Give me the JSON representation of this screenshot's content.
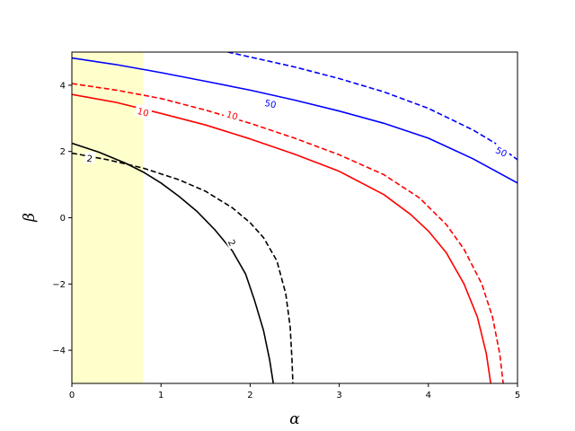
{
  "chart_data": {
    "type": "line",
    "title": "",
    "xlabel": "α",
    "ylabel": "β",
    "xlim": [
      0,
      5
    ],
    "ylim": [
      -5,
      5
    ],
    "xticks": [
      0,
      1,
      2,
      3,
      4,
      5
    ],
    "yticks": [
      -4,
      -2,
      0,
      2,
      4
    ],
    "grid": false,
    "legend": "none",
    "shaded_region": {
      "x": [
        0,
        0.8
      ],
      "color": "#ffffcc"
    },
    "series": [
      {
        "color": "#000000",
        "style": "solid",
        "points": [
          [
            0,
            2.25
          ],
          [
            0.3,
            1.98
          ],
          [
            0.6,
            1.65
          ],
          [
            0.8,
            1.38
          ],
          [
            1.0,
            1.05
          ],
          [
            1.2,
            0.65
          ],
          [
            1.4,
            0.2
          ],
          [
            1.6,
            -0.35
          ],
          [
            1.8,
            -1.0
          ],
          [
            1.95,
            -1.7
          ],
          [
            2.05,
            -2.5
          ],
          [
            2.15,
            -3.4
          ],
          [
            2.22,
            -4.3
          ],
          [
            2.26,
            -5.0
          ]
        ]
      },
      {
        "color": "#000000",
        "style": "dashed",
        "points": [
          [
            0,
            1.95
          ],
          [
            0.4,
            1.75
          ],
          [
            0.8,
            1.5
          ],
          [
            1.2,
            1.15
          ],
          [
            1.5,
            0.8
          ],
          [
            1.8,
            0.3
          ],
          [
            2.0,
            -0.15
          ],
          [
            2.15,
            -0.6
          ],
          [
            2.3,
            -1.3
          ],
          [
            2.4,
            -2.3
          ],
          [
            2.45,
            -3.3
          ],
          [
            2.47,
            -4.3
          ],
          [
            2.48,
            -5.0
          ]
        ]
      },
      {
        "color": "#ff0000",
        "style": "solid",
        "points": [
          [
            0,
            3.72
          ],
          [
            0.5,
            3.48
          ],
          [
            1.0,
            3.15
          ],
          [
            1.5,
            2.8
          ],
          [
            2.0,
            2.38
          ],
          [
            2.5,
            1.92
          ],
          [
            3.0,
            1.4
          ],
          [
            3.5,
            0.7
          ],
          [
            3.8,
            0.1
          ],
          [
            4.0,
            -0.4
          ],
          [
            4.2,
            -1.05
          ],
          [
            4.4,
            -2.0
          ],
          [
            4.55,
            -3.0
          ],
          [
            4.65,
            -4.1
          ],
          [
            4.7,
            -5.0
          ]
        ]
      },
      {
        "color": "#ff0000",
        "style": "dashed",
        "points": [
          [
            0,
            4.05
          ],
          [
            0.5,
            3.85
          ],
          [
            1.0,
            3.6
          ],
          [
            1.5,
            3.25
          ],
          [
            2.0,
            2.85
          ],
          [
            2.5,
            2.4
          ],
          [
            3.0,
            1.9
          ],
          [
            3.5,
            1.3
          ],
          [
            3.9,
            0.6
          ],
          [
            4.2,
            -0.2
          ],
          [
            4.4,
            -0.95
          ],
          [
            4.6,
            -2.0
          ],
          [
            4.72,
            -3.0
          ],
          [
            4.8,
            -4.1
          ],
          [
            4.84,
            -5.0
          ]
        ]
      },
      {
        "color": "#0000ff",
        "style": "solid",
        "points": [
          [
            0,
            4.82
          ],
          [
            0.5,
            4.62
          ],
          [
            1.0,
            4.38
          ],
          [
            1.5,
            4.12
          ],
          [
            2.0,
            3.85
          ],
          [
            2.5,
            3.55
          ],
          [
            3.0,
            3.22
          ],
          [
            3.5,
            2.85
          ],
          [
            4.0,
            2.4
          ],
          [
            4.5,
            1.78
          ],
          [
            5.0,
            1.05
          ]
        ]
      },
      {
        "color": "#0000ff",
        "style": "dashed",
        "points": [
          [
            1.75,
            5.0
          ],
          [
            2.0,
            4.85
          ],
          [
            2.5,
            4.55
          ],
          [
            3.0,
            4.2
          ],
          [
            3.5,
            3.8
          ],
          [
            4.0,
            3.3
          ],
          [
            4.5,
            2.65
          ],
          [
            4.75,
            2.25
          ],
          [
            5.0,
            1.75
          ]
        ]
      }
    ],
    "annotations": [
      {
        "text": "2",
        "x": 0.2,
        "y": 1.8,
        "color": "#000000",
        "rotation": 8
      },
      {
        "text": "2",
        "x": 1.8,
        "y": -0.75,
        "color": "#000000",
        "rotation": 62
      },
      {
        "text": "10",
        "x": 0.8,
        "y": 3.2,
        "color": "#ff0000",
        "rotation": 15
      },
      {
        "text": "10",
        "x": 1.8,
        "y": 3.1,
        "color": "#ff0000",
        "rotation": 18
      },
      {
        "text": "50",
        "x": 2.23,
        "y": 3.45,
        "color": "#0000ff",
        "rotation": 12
      },
      {
        "text": "50",
        "x": 4.82,
        "y": 2.0,
        "color": "#0000ff",
        "rotation": 25
      }
    ]
  }
}
